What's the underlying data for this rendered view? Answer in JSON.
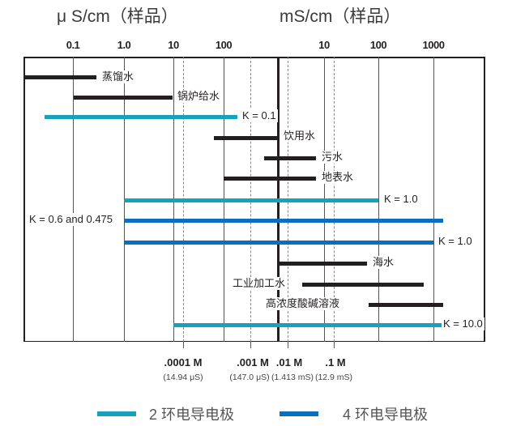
{
  "header": {
    "left_unit": "μ S/cm（样品）",
    "right_unit": "mS/cm（样品）"
  },
  "top_ticks": [
    "0.1",
    "1.0",
    "10",
    "100",
    "10",
    "100",
    "1000"
  ],
  "rows": [
    {
      "label": "蒸馏水",
      "type": "sample"
    },
    {
      "label": "锅炉给水",
      "type": "sample"
    },
    {
      "label": "K = 0.1",
      "type": "2-ring"
    },
    {
      "label": "饮用水",
      "type": "sample"
    },
    {
      "label": "污水",
      "type": "sample"
    },
    {
      "label": "地表水",
      "type": "sample"
    },
    {
      "label": "K = 1.0",
      "type": "2-ring"
    },
    {
      "label": "K = 0.6 and 0.475",
      "type": "4-ring"
    },
    {
      "label": "K = 1.0",
      "type": "4-ring"
    },
    {
      "label": "海水",
      "type": "sample"
    },
    {
      "label": "工业加工水",
      "type": "sample"
    },
    {
      "label": "高浓度酸碱溶液",
      "type": "sample"
    },
    {
      "label": "K = 10.0",
      "type": "2-ring"
    }
  ],
  "molar": [
    {
      "conc": ".0001 M",
      "value": "(14.94 μS)"
    },
    {
      "conc": ".001 M",
      "value": "(147.0 μS)"
    },
    {
      "conc": ".01 M",
      "value": "(1.413 mS)"
    },
    {
      "conc": ".1 M",
      "value": "(12.9 mS)"
    }
  ],
  "legend": {
    "two_ring": "2 环电导电极",
    "four_ring": "4 环电导电极"
  },
  "colors": {
    "sample": "#231f20",
    "two_ring": "#16a2bd",
    "four_ring": "#0b6fbf"
  }
}
